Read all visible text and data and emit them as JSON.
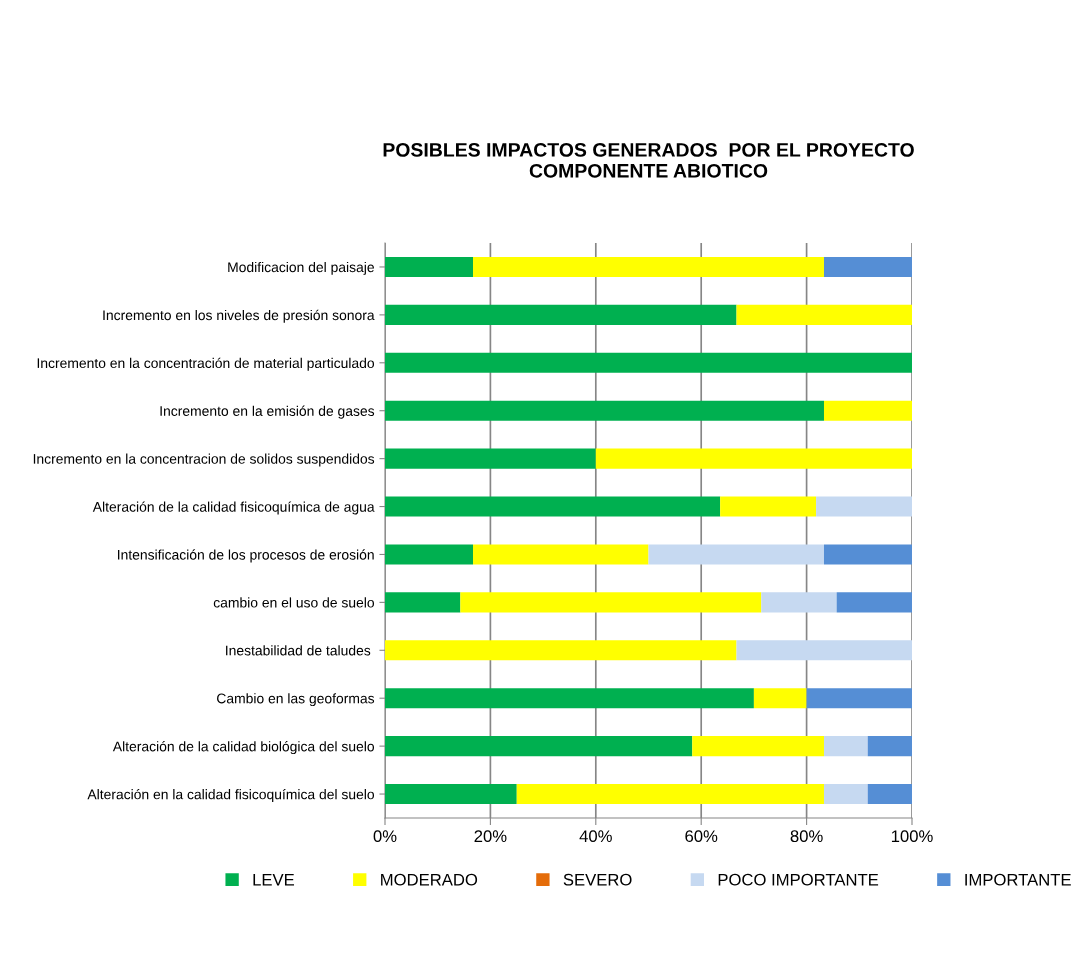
{
  "chart_data": {
    "type": "bar",
    "orientation": "horizontal",
    "stacked": true,
    "title": "POSIBLES IMPACTOS GENERADOS  POR EL PROYECTO\nCOMPONENTE ABIOTICO",
    "categories": [
      "Modificacion del paisaje",
      "Incremento en los niveles de presión sonora",
      "Incremento en la concentración de material particulado",
      "Incremento en la emisión de gases",
      "Incremento en la concentracion de solidos suspendidos",
      "Alteración de la calidad fisicoquímica de agua",
      "Intensificación de los procesos de erosión",
      "cambio en el uso de suelo",
      "Inestabilidad de taludes ",
      "Cambio en las geoformas",
      "Alteración de la calidad biológica del suelo",
      "Alteración en la calidad fisicoquímica del suelo"
    ],
    "series": [
      {
        "name": "LEVE",
        "color": "#00b050",
        "values": [
          16.7,
          66.7,
          100,
          83.3,
          40,
          63.6,
          16.7,
          14.3,
          0,
          70,
          58.3,
          25
        ]
      },
      {
        "name": "MODERADO",
        "color": "#ffff00",
        "values": [
          66.6,
          33.3,
          0,
          16.7,
          60,
          18.2,
          33.3,
          57.1,
          66.7,
          10,
          25,
          58.3
        ]
      },
      {
        "name": "SEVERO",
        "color": "#e46c0a",
        "values": [
          0,
          0,
          0,
          0,
          0,
          0,
          0,
          0,
          0,
          0,
          0,
          0
        ]
      },
      {
        "name": "POCO IMPORTANTE",
        "color": "#c6d9f1",
        "values": [
          0,
          0,
          0,
          0,
          0,
          18.2,
          33.3,
          14.3,
          33.3,
          0,
          8.3,
          8.3
        ]
      },
      {
        "name": "IMPORTANTE",
        "color": "#558ed5",
        "values": [
          16.7,
          0,
          0,
          0,
          0,
          0,
          16.7,
          14.3,
          0,
          20,
          8.4,
          8.4
        ]
      }
    ],
    "xlim": [
      0,
      100
    ],
    "xticks": [
      {
        "value": 0,
        "label": "0%"
      },
      {
        "value": 20,
        "label": "20%"
      },
      {
        "value": 40,
        "label": "40%"
      },
      {
        "value": 60,
        "label": "60%"
      },
      {
        "value": 80,
        "label": "80%"
      },
      {
        "value": 100,
        "label": "100%"
      }
    ],
    "grid": "x",
    "legend": "bottom"
  }
}
